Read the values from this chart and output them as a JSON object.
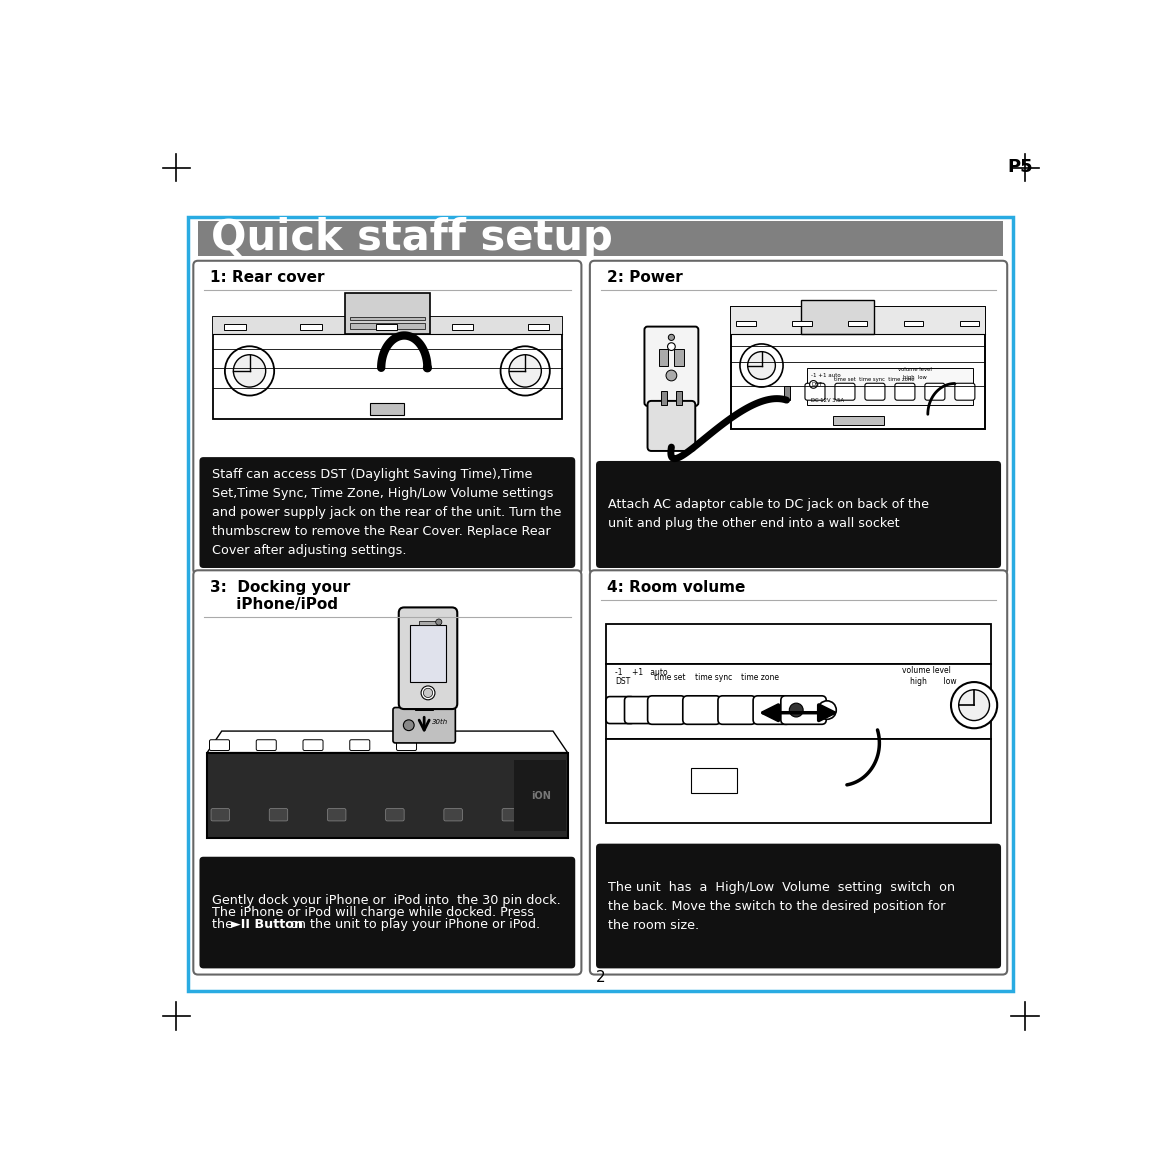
{
  "page_bg": "#ffffff",
  "border_color": "#29abe2",
  "title_bg": "#808080",
  "title_text": "Quick staff setup",
  "title_color": "#ffffff",
  "page_num": "P5",
  "page_num2": "2",
  "box1_title": "1: Rear cover",
  "box2_title": "2: Power",
  "box3_title1": "3:  Docking your",
  "box3_title2": "     iPhone/iPod",
  "box4_title": "4: Room volume",
  "box1_caption": "Staff can access DST (Daylight Saving Time),Time\nSet,Time Sync, Time Zone, High/Low Volume settings\nand power supply jack on the rear of the unit. Turn the\nthumbscrew to remove the Rear Cover. Replace Rear\nCover after adjusting settings.",
  "box2_caption": "Attach AC adaptor cable to DC jack on back of the\nunit and plug the other end into a wall socket",
  "box3_caption_plain": "Gently dock your iPhone or  iPod into  the 30 pin dock.\nThe iPhone or iPod will charge while docked. Press\nthe ",
  "box3_caption_bold": "►II Button",
  "box3_caption_end": " on the unit to play your iPhone or iPod.",
  "box4_caption": "The unit  has  a  High/Low  Volume  setting  switch  on\nthe back. Move the switch to the desired position for\nthe room size.",
  "caption_bg": "#111111",
  "caption_color": "#ffffff",
  "panel_border": "#666666",
  "tick_color": "#000000",
  "gray_mid": "#888888",
  "light_gray": "#dddddd",
  "img_bg": "#ffffff"
}
